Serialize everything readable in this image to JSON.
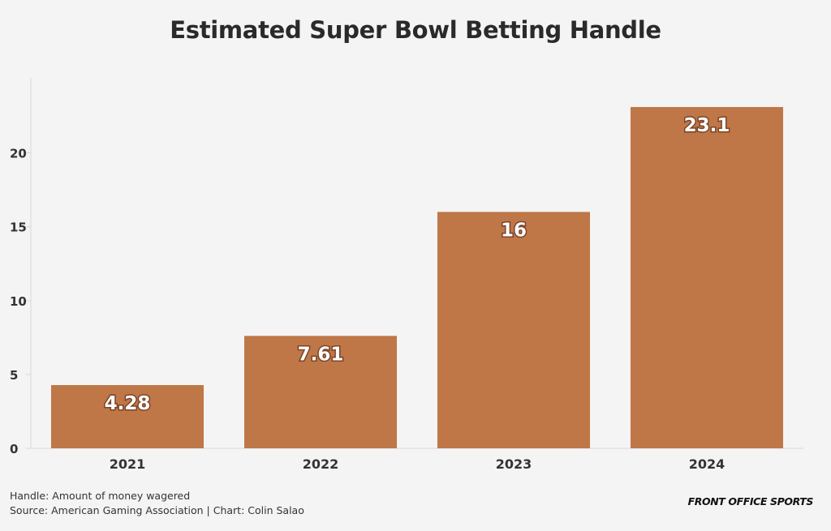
{
  "chart_data": {
    "type": "bar",
    "title": "Estimated Super Bowl Betting Handle",
    "xlabel": "",
    "ylabel": "",
    "categories": [
      "2021",
      "2022",
      "2023",
      "2024"
    ],
    "values": [
      4.28,
      7.61,
      16,
      23.1
    ],
    "value_labels": [
      "4.28",
      "7.61",
      "16",
      "23.1"
    ],
    "ylim": [
      0,
      24.2
    ],
    "yticks": [
      0,
      5,
      10,
      15,
      20
    ],
    "grid": false,
    "legend": "none",
    "bar_color": "#bf7747",
    "label_color": "#ffffff",
    "label_outline_color": "#7a4326"
  },
  "footer": {
    "note": "Handle: Amount of money wagered",
    "source": "Source: American Gaming Association | Chart: Colin Salao",
    "brand": "FRONT OFFICE SPORTS"
  }
}
